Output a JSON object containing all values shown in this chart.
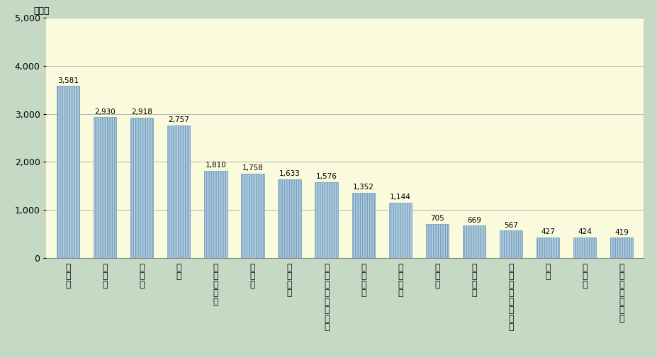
{
  "categories": [
    "たばこ",
    "たき火",
    "こんろ",
    "放火",
    "放火の疑い",
    "火入れ",
    "電気機器",
    "電灯電話等の配線",
    "配線器具",
    "ストーブ",
    "排気管",
    "電気装置",
    "マッチ・ライター",
    "灯火",
    "火遊び",
    "溶接機・切断機"
  ],
  "values": [
    3581,
    2930,
    2918,
    2757,
    1810,
    1758,
    1633,
    1576,
    1352,
    1144,
    705,
    669,
    567,
    427,
    424,
    419
  ],
  "bar_color": "#aaccdd",
  "bar_edge_color": "#7799bb",
  "bar_hatch_color": "#88aacc",
  "background_plot": "#fafadc",
  "background_fig": "#c5d9c5",
  "grid_color": "#aaaaaa",
  "ylabel": "（件）",
  "ylim": [
    0,
    5000
  ],
  "yticks": [
    0,
    1000,
    2000,
    3000,
    4000,
    5000
  ],
  "value_label_fontsize": 7.5,
  "tick_fontsize": 9
}
